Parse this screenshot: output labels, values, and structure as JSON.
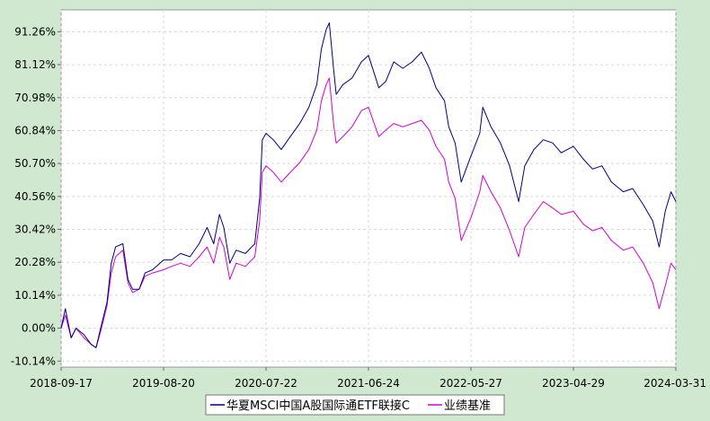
{
  "chart_data": {
    "type": "line",
    "y_axis": {
      "unit": "%",
      "ticks": [
        "91.26%",
        "81.12%",
        "70.98%",
        "60.84%",
        "50.70%",
        "40.56%",
        "30.42%",
        "20.28%",
        "10.14%",
        "0.00%",
        "-10.14%"
      ],
      "range": [
        -12,
        98
      ]
    },
    "x_axis": {
      "ticks": [
        "2018-09-17",
        "2019-08-20",
        "2020-07-22",
        "2021-06-24",
        "2022-05-27",
        "2023-04-29",
        "2024-03-31"
      ],
      "range": [
        "2018-09-17",
        "2024-03-31"
      ]
    },
    "grid": true,
    "legend_placement": "bottom-center",
    "series": [
      {
        "name": "华夏MSCI中国A股国际通ETF联接C",
        "color": "#000080",
        "points": [
          [
            "2018-09-17",
            0.0
          ],
          [
            "2018-10-01",
            6.0
          ],
          [
            "2018-10-20",
            -3.0
          ],
          [
            "2018-11-05",
            0.0
          ],
          [
            "2018-12-01",
            -2.0
          ],
          [
            "2018-12-25",
            -5.0
          ],
          [
            "2019-01-10",
            -6.0
          ],
          [
            "2019-01-25",
            0.0
          ],
          [
            "2019-02-15",
            8.0
          ],
          [
            "2019-03-01",
            20.0
          ],
          [
            "2019-03-15",
            25.0
          ],
          [
            "2019-04-08",
            26.0
          ],
          [
            "2019-04-25",
            15.0
          ],
          [
            "2019-05-10",
            12.0
          ],
          [
            "2019-06-01",
            12.0
          ],
          [
            "2019-06-20",
            17.0
          ],
          [
            "2019-07-15",
            18.0
          ],
          [
            "2019-08-20",
            21.0
          ],
          [
            "2019-09-15",
            21.0
          ],
          [
            "2019-10-15",
            23.0
          ],
          [
            "2019-11-15",
            22.0
          ],
          [
            "2019-12-15",
            26.0
          ],
          [
            "2020-01-10",
            31.0
          ],
          [
            "2020-02-01",
            26.0
          ],
          [
            "2020-02-20",
            35.0
          ],
          [
            "2020-03-05",
            31.0
          ],
          [
            "2020-03-25",
            20.0
          ],
          [
            "2020-04-15",
            24.0
          ],
          [
            "2020-05-15",
            23.0
          ],
          [
            "2020-06-15",
            26.0
          ],
          [
            "2020-07-01",
            40.0
          ],
          [
            "2020-07-10",
            58.0
          ],
          [
            "2020-07-22",
            60.0
          ],
          [
            "2020-08-15",
            58.0
          ],
          [
            "2020-09-10",
            55.0
          ],
          [
            "2020-10-10",
            59.0
          ],
          [
            "2020-11-10",
            63.0
          ],
          [
            "2020-12-10",
            68.0
          ],
          [
            "2021-01-05",
            75.0
          ],
          [
            "2021-01-20",
            86.0
          ],
          [
            "2021-02-05",
            92.0
          ],
          [
            "2021-02-15",
            94.0
          ],
          [
            "2021-03-01",
            80.0
          ],
          [
            "2021-03-10",
            72.0
          ],
          [
            "2021-04-01",
            75.0
          ],
          [
            "2021-05-01",
            77.0
          ],
          [
            "2021-06-01",
            82.0
          ],
          [
            "2021-06-24",
            84.0
          ],
          [
            "2021-07-28",
            74.0
          ],
          [
            "2021-08-20",
            76.0
          ],
          [
            "2021-09-15",
            82.0
          ],
          [
            "2021-10-15",
            80.0
          ],
          [
            "2021-11-15",
            82.0
          ],
          [
            "2021-12-15",
            85.0
          ],
          [
            "2022-01-10",
            80.0
          ],
          [
            "2022-02-01",
            74.0
          ],
          [
            "2022-03-01",
            70.0
          ],
          [
            "2022-03-15",
            62.0
          ],
          [
            "2022-04-05",
            57.0
          ],
          [
            "2022-04-25",
            45.0
          ],
          [
            "2022-05-27",
            53.0
          ],
          [
            "2022-06-25",
            60.0
          ],
          [
            "2022-07-05",
            68.0
          ],
          [
            "2022-08-01",
            62.0
          ],
          [
            "2022-09-01",
            57.0
          ],
          [
            "2022-10-01",
            50.0
          ],
          [
            "2022-10-31",
            39.0
          ],
          [
            "2022-11-20",
            50.0
          ],
          [
            "2022-12-20",
            55.0
          ],
          [
            "2023-01-20",
            58.0
          ],
          [
            "2023-02-20",
            57.0
          ],
          [
            "2023-03-20",
            54.0
          ],
          [
            "2023-04-29",
            56.0
          ],
          [
            "2023-06-01",
            52.0
          ],
          [
            "2023-07-01",
            49.0
          ],
          [
            "2023-08-01",
            50.0
          ],
          [
            "2023-09-01",
            45.0
          ],
          [
            "2023-10-10",
            42.0
          ],
          [
            "2023-11-10",
            43.0
          ],
          [
            "2023-12-15",
            38.0
          ],
          [
            "2024-01-15",
            33.0
          ],
          [
            "2024-02-05",
            25.0
          ],
          [
            "2024-02-25",
            36.0
          ],
          [
            "2024-03-15",
            42.0
          ],
          [
            "2024-03-31",
            39.0
          ]
        ]
      },
      {
        "name": "业绩基准",
        "color": "#d400d4",
        "points": [
          [
            "2018-09-17",
            0.0
          ],
          [
            "2018-10-01",
            4.0
          ],
          [
            "2018-10-20",
            -3.0
          ],
          [
            "2018-11-05",
            0.0
          ],
          [
            "2018-12-01",
            -3.0
          ],
          [
            "2018-12-25",
            -5.0
          ],
          [
            "2019-01-10",
            -6.0
          ],
          [
            "2019-01-25",
            -1.0
          ],
          [
            "2019-02-15",
            7.0
          ],
          [
            "2019-03-01",
            17.0
          ],
          [
            "2019-03-15",
            22.0
          ],
          [
            "2019-04-08",
            24.0
          ],
          [
            "2019-04-25",
            14.0
          ],
          [
            "2019-05-10",
            11.0
          ],
          [
            "2019-06-01",
            12.0
          ],
          [
            "2019-06-20",
            16.0
          ],
          [
            "2019-07-15",
            17.0
          ],
          [
            "2019-08-20",
            18.0
          ],
          [
            "2019-09-15",
            19.0
          ],
          [
            "2019-10-15",
            20.0
          ],
          [
            "2019-11-15",
            19.0
          ],
          [
            "2019-12-15",
            22.0
          ],
          [
            "2020-01-10",
            25.0
          ],
          [
            "2020-02-01",
            20.0
          ],
          [
            "2020-02-20",
            28.0
          ],
          [
            "2020-03-05",
            25.0
          ],
          [
            "2020-03-25",
            15.0
          ],
          [
            "2020-04-15",
            20.0
          ],
          [
            "2020-05-15",
            19.0
          ],
          [
            "2020-06-15",
            22.0
          ],
          [
            "2020-07-01",
            33.0
          ],
          [
            "2020-07-10",
            48.0
          ],
          [
            "2020-07-22",
            50.0
          ],
          [
            "2020-08-15",
            48.0
          ],
          [
            "2020-09-10",
            45.0
          ],
          [
            "2020-10-10",
            48.0
          ],
          [
            "2020-11-10",
            51.0
          ],
          [
            "2020-12-10",
            55.0
          ],
          [
            "2021-01-05",
            61.0
          ],
          [
            "2021-01-20",
            70.0
          ],
          [
            "2021-02-05",
            75.0
          ],
          [
            "2021-02-15",
            77.0
          ],
          [
            "2021-03-01",
            63.0
          ],
          [
            "2021-03-10",
            57.0
          ],
          [
            "2021-04-01",
            59.0
          ],
          [
            "2021-05-01",
            62.0
          ],
          [
            "2021-06-01",
            67.0
          ],
          [
            "2021-06-24",
            68.0
          ],
          [
            "2021-07-28",
            59.0
          ],
          [
            "2021-08-20",
            61.0
          ],
          [
            "2021-09-15",
            63.0
          ],
          [
            "2021-10-15",
            62.0
          ],
          [
            "2021-11-15",
            63.0
          ],
          [
            "2021-12-15",
            64.0
          ],
          [
            "2022-01-10",
            61.0
          ],
          [
            "2022-02-01",
            56.0
          ],
          [
            "2022-03-01",
            52.0
          ],
          [
            "2022-03-15",
            45.0
          ],
          [
            "2022-04-05",
            40.0
          ],
          [
            "2022-04-25",
            27.0
          ],
          [
            "2022-05-27",
            34.0
          ],
          [
            "2022-06-25",
            42.0
          ],
          [
            "2022-07-05",
            47.0
          ],
          [
            "2022-08-01",
            42.0
          ],
          [
            "2022-09-01",
            37.0
          ],
          [
            "2022-10-01",
            30.0
          ],
          [
            "2022-10-31",
            22.0
          ],
          [
            "2022-11-20",
            31.0
          ],
          [
            "2022-12-20",
            35.0
          ],
          [
            "2023-01-20",
            39.0
          ],
          [
            "2023-02-20",
            37.0
          ],
          [
            "2023-03-20",
            35.0
          ],
          [
            "2023-04-29",
            36.0
          ],
          [
            "2023-06-01",
            32.0
          ],
          [
            "2023-07-01",
            30.0
          ],
          [
            "2023-08-01",
            31.0
          ],
          [
            "2023-09-01",
            27.0
          ],
          [
            "2023-10-10",
            24.0
          ],
          [
            "2023-11-10",
            25.0
          ],
          [
            "2023-12-15",
            20.0
          ],
          [
            "2024-01-15",
            14.0
          ],
          [
            "2024-02-05",
            6.0
          ],
          [
            "2024-02-25",
            13.0
          ],
          [
            "2024-03-15",
            20.0
          ],
          [
            "2024-03-31",
            18.0
          ]
        ]
      }
    ]
  }
}
